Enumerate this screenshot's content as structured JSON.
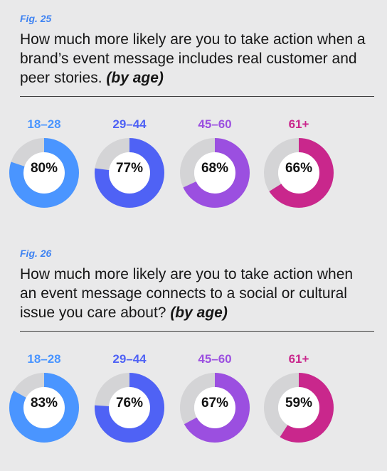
{
  "colors": {
    "background": "#e9e9ea",
    "track": "#d4d4d6",
    "fig_label": "#3f83f2",
    "ages": [
      "#4a95ff",
      "#4f62f5",
      "#9b4fe0",
      "#c9278c"
    ]
  },
  "figures": [
    {
      "fig_label": "Fig. 25",
      "question": "How much more likely are you to take action when a brand’s event message includes real customer and peer stories.",
      "question_suffix": "(by age)"
    },
    {
      "fig_label": "Fig. 26",
      "question": "How much more likely are you to take action when an event message connects to a social or cultural issue you care about?",
      "question_suffix": "(by age)"
    }
  ],
  "chart_data": [
    {
      "type": "pie",
      "variant": "donut",
      "title": "How much more likely are you to take action when a brand’s event message includes real customer and peer stories. (by age)",
      "categories": [
        "18–28",
        "29–44",
        "45–60",
        "61+"
      ],
      "values": [
        80,
        77,
        68,
        66
      ],
      "labels": [
        "80%",
        "77%",
        "68%",
        "66%"
      ],
      "unit": "%"
    },
    {
      "type": "pie",
      "variant": "donut",
      "title": "How much more likely are you to take action when an event message connects to a social or cultural issue you care about? (by age)",
      "categories": [
        "18–28",
        "29–44",
        "45–60",
        "61+"
      ],
      "values": [
        83,
        76,
        67,
        59
      ],
      "labels": [
        "83%",
        "76%",
        "67%",
        "59%"
      ],
      "unit": "%"
    }
  ]
}
